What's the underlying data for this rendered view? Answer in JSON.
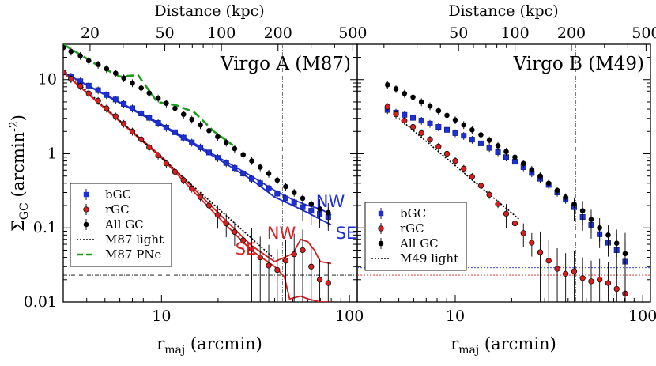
{
  "chart_data": {
    "type": "scatter",
    "top_axis_label": "Distance (kpc)",
    "x_label_main": "r",
    "x_label_sub": "maj",
    "x_label_unit": " (arcmin)",
    "y_label_main": "Σ",
    "y_label_sub": "GC",
    "y_label_unit": " (arcmin",
    "y_label_exp": "-2",
    "y_label_close": ")",
    "xlim": [
      3,
      110
    ],
    "ylim": [
      0.01,
      30
    ],
    "x_ticks": [
      {
        "v": 10,
        "label": "10"
      },
      {
        "v": 100,
        "label": "100"
      }
    ],
    "y_ticks": [
      {
        "v": 0.01,
        "label": "0.01"
      },
      {
        "v": 0.1,
        "label": "0.1"
      },
      {
        "v": 1,
        "label": "1"
      },
      {
        "v": 10,
        "label": "10"
      }
    ],
    "panels": [
      {
        "title": "Virgo A (M87)",
        "top_ticks": [
          {
            "v": 20,
            "label": "20"
          },
          {
            "v": 50,
            "label": "50"
          },
          {
            "v": 100,
            "label": "100"
          },
          {
            "v": 200,
            "label": "200"
          },
          {
            "v": 500,
            "label": "500"
          }
        ],
        "kpc_per_arcmin": 4.8,
        "vline_x": 44,
        "hlines": [
          0.027,
          0.023
        ],
        "series": [
          {
            "name": "bGC",
            "marker": "square",
            "color": "#1f2fd6",
            "x": [
              3,
              3.3,
              3.7,
              4.1,
              4.6,
              5.1,
              5.7,
              6.3,
              7,
              7.8,
              8.6,
              9.6,
              10.6,
              11.8,
              13.1,
              14.5,
              16.1,
              17.9,
              19.9,
              22.1,
              24.5,
              27.2,
              30.2,
              33.5,
              37.2,
              41.3,
              45.8,
              50.8,
              56.4,
              62.6,
              69.5,
              77.1
            ],
            "y": [
              12.5,
              11,
              9.5,
              8.3,
              7.2,
              6.2,
              5.4,
              4.7,
              4.1,
              3.5,
              3.05,
              2.6,
              2.25,
              1.95,
              1.65,
              1.42,
              1.22,
              1.04,
              0.88,
              0.75,
              0.64,
              0.54,
              0.46,
              0.4,
              0.34,
              0.29,
              0.25,
              0.22,
              0.19,
              0.17,
              0.155,
              0.14
            ]
          },
          {
            "name": "rGC",
            "marker": "circle",
            "color": "#d42020",
            "x": [
              3,
              3.3,
              3.7,
              4.1,
              4.6,
              5.1,
              5.7,
              6.3,
              7,
              7.8,
              8.6,
              9.6,
              10.6,
              11.8,
              13.1,
              14.5,
              16.1,
              17.9,
              19.9,
              22.1,
              24.5,
              27.2,
              30.2,
              33.5,
              37.2,
              41.3,
              45.8,
              50.8,
              56.4,
              62.6,
              69.5,
              77.1
            ],
            "y": [
              12.5,
              10.2,
              8.2,
              6.5,
              5.2,
              4.1,
              3.2,
              2.55,
              2,
              1.56,
              1.22,
              0.95,
              0.74,
              0.57,
              0.44,
              0.34,
              0.26,
              0.2,
              0.15,
              0.115,
              0.088,
              0.068,
              0.052,
              0.04,
              0.031,
              0.027,
              0.036,
              0.044,
              0.05,
              0.03,
              0.02,
              0.018
            ]
          },
          {
            "name": "All GC",
            "marker": "circle",
            "color": "#000000",
            "x": [
              3,
              3.3,
              3.7,
              4.1,
              4.6,
              5.1,
              5.7,
              6.3,
              7,
              7.8,
              8.6,
              9.6,
              10.6,
              11.8,
              13.1,
              14.5,
              16.1,
              17.9,
              19.9,
              22.1,
              24.5,
              27.2,
              30.2,
              33.5,
              37.2,
              41.3,
              45.8,
              50.8,
              56.4,
              62.6,
              69.5,
              77.1
            ],
            "y": [
              27,
              24,
              21,
              18,
              16,
              14,
              12.2,
              10.5,
              9,
              7.7,
              6.6,
              5.6,
              4.8,
              4.1,
              3.4,
              2.9,
              2.45,
              2.05,
              1.7,
              1.42,
              1.17,
              0.97,
              0.8,
              0.66,
              0.54,
              0.44,
              0.36,
              0.3,
              0.25,
              0.21,
              0.18,
              0.16
            ]
          },
          {
            "name": "M87 light",
            "line": "dotted",
            "color": "#000000",
            "x": [
              3,
              40
            ],
            "y": [
              13.5,
              0.038
            ]
          },
          {
            "name": "M87 PNe",
            "line": "dashed",
            "color": "#1e9a1e",
            "x": [
              3,
              4.5,
              6,
              7.5,
              9.5,
              12,
              15,
              19,
              24
            ],
            "y": [
              30,
              16,
              11,
              11.5,
              5,
              4.5,
              3.6,
              2,
              1.3
            ]
          }
        ],
        "region_curves": [
          {
            "label": "NW",
            "color": "#1f2fd6",
            "x": [
              3,
              10,
              20,
              30,
              40,
              50,
              60,
              70,
              80
            ],
            "y": [
              12.5,
              2.5,
              0.9,
              0.5,
              0.32,
              0.24,
              0.2,
              0.18,
              0.15
            ]
          },
          {
            "label": "SE",
            "color": "#1f2fd6",
            "x": [
              3,
              10,
              20,
              30,
              40,
              50,
              60,
              70,
              80
            ],
            "y": [
              12.5,
              2.4,
              0.85,
              0.45,
              0.26,
              0.2,
              0.16,
              0.13,
              0.11
            ]
          },
          {
            "label": "NW",
            "color": "#d42020",
            "x": [
              3,
              10,
              20,
              30,
              40,
              50,
              55,
              60,
              65,
              70,
              80
            ],
            "y": [
              12.5,
              0.92,
              0.16,
              0.058,
              0.035,
              0.045,
              0.07,
              0.065,
              0.05,
              0.035,
              0.033
            ]
          },
          {
            "label": "SE",
            "color": "#d42020",
            "x": [
              3,
              10,
              20,
              30,
              40,
              45,
              48,
              55,
              60,
              70,
              80
            ],
            "y": [
              12.5,
              0.88,
              0.14,
              0.05,
              0.03,
              0.022,
              0.011,
              0.012,
              0.011,
              0.01,
              0.01
            ]
          }
        ],
        "legend": [
          "bGC",
          "rGC",
          "All GC",
          "M87 light",
          "M87 PNe"
        ],
        "annotations": [
          {
            "text": "NW",
            "color": "#1f2fd6"
          },
          {
            "text": "SE",
            "color": "#1f2fd6"
          },
          {
            "text": "NW",
            "color": "#d42020"
          },
          {
            "text": "SE",
            "color": "#d42020"
          }
        ]
      },
      {
        "title": "Virgo B (M49)",
        "top_ticks": [
          {
            "v": 50,
            "label": "50"
          },
          {
            "v": 100,
            "label": "100"
          },
          {
            "v": 200,
            "label": "200"
          },
          {
            "v": 500,
            "label": "500"
          }
        ],
        "kpc_per_arcmin": 4.8,
        "vline_x": 44,
        "hlines_colored": [
          {
            "v": 0.029,
            "color": "#1f2fd6"
          },
          {
            "v": 0.023,
            "color": "#d42020"
          }
        ],
        "series": [
          {
            "name": "bGC",
            "marker": "square",
            "color": "#1f2fd6",
            "x": [
              4.35,
              4.83,
              5.36,
              5.95,
              6.6,
              7.33,
              8.14,
              9.03,
              10.0,
              11.1,
              12.3,
              13.7,
              15.2,
              16.9,
              18.7,
              20.8,
              23.1,
              25.6,
              28.4,
              31.5,
              35.0,
              38.8,
              43.1,
              47.8,
              53.1,
              58.9,
              65.4,
              72.6,
              80.6
            ],
            "y": [
              3.9,
              3.6,
              3.35,
              3.05,
              2.8,
              2.55,
              2.3,
              2.1,
              1.9,
              1.75,
              1.55,
              1.38,
              1.2,
              1.05,
              0.9,
              0.78,
              0.66,
              0.55,
              0.46,
              0.38,
              0.3,
              0.24,
              0.19,
              0.14,
              0.11,
              0.082,
              0.063,
              0.05,
              0.035
            ]
          },
          {
            "name": "rGC",
            "marker": "circle",
            "color": "#d42020",
            "x": [
              4.35,
              4.83,
              5.36,
              5.95,
              6.6,
              7.33,
              8.14,
              9.03,
              10.0,
              11.1,
              12.3,
              13.7,
              15.2,
              16.9,
              18.7,
              20.8,
              23.1,
              25.6,
              28.4,
              31.5,
              35.0,
              38.8,
              43.1,
              47.8,
              53.1,
              58.9,
              65.4,
              72.6,
              80.6
            ],
            "y": [
              4.3,
              3.4,
              2.8,
              2.3,
              1.9,
              1.55,
              1.25,
              1.0,
              0.8,
              0.63,
              0.49,
              0.37,
              0.28,
              0.21,
              0.155,
              0.115,
              0.085,
              0.063,
              0.047,
              0.036,
              0.028,
              0.024,
              0.026,
              0.021,
              0.019,
              0.02,
              0.018,
              0.015,
              0.013
            ]
          },
          {
            "name": "All GC",
            "marker": "circle",
            "color": "#000000",
            "x": [
              4.35,
              4.83,
              5.36,
              5.95,
              6.6,
              7.33,
              8.14,
              9.03,
              10.0,
              11.1,
              12.3,
              13.7,
              15.2,
              16.9,
              18.7,
              20.8,
              23.1,
              25.6,
              28.4,
              31.5,
              35.0,
              38.8,
              43.1,
              47.8,
              53.1,
              58.9,
              65.4,
              72.6,
              80.6
            ],
            "y": [
              8.5,
              7.5,
              6.5,
              5.8,
              5.0,
              4.4,
              3.8,
              3.3,
              2.85,
              2.45,
              2.1,
              1.8,
              1.52,
              1.28,
              1.07,
              0.9,
              0.74,
              0.61,
              0.5,
              0.4,
              0.32,
              0.26,
              0.21,
              0.17,
              0.13,
              0.1,
              0.08,
              0.062,
              0.045
            ]
          },
          {
            "name": "M49 light",
            "line": "dotted",
            "color": "#000000",
            "x": [
              5,
              22
            ],
            "y": [
              3.0,
              0.13
            ]
          }
        ],
        "legend": [
          "bGC",
          "rGC",
          "All GC",
          "M49 light"
        ]
      }
    ]
  }
}
